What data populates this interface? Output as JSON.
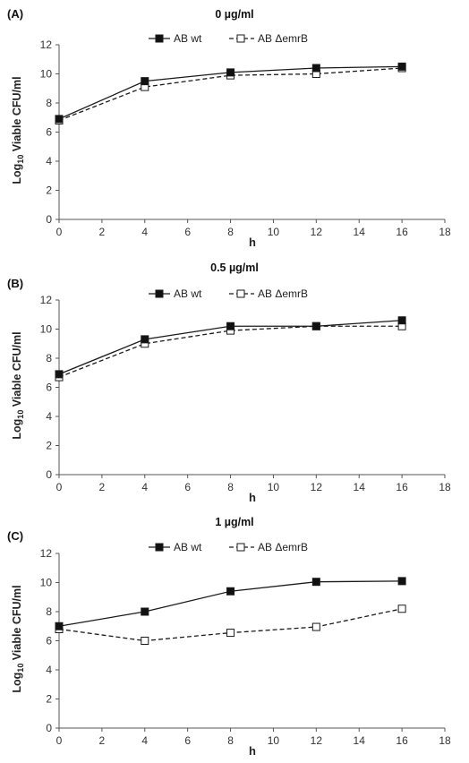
{
  "chart_data": [
    {
      "panel": "(A)",
      "type": "line",
      "title": "0 µg/ml",
      "xlabel": "h",
      "ylabel_main": "Log",
      "ylabel_sub": "10",
      "ylabel_rest": " Viable CFU/ml",
      "xlim": [
        0,
        18
      ],
      "ylim": [
        0,
        12
      ],
      "xticks": [
        "0",
        "2",
        "4",
        "6",
        "8",
        "10",
        "12",
        "14",
        "16",
        "18"
      ],
      "yticks": [
        "0",
        "2",
        "4",
        "6",
        "8",
        "10",
        "12"
      ],
      "legend": "top-center",
      "grid": false,
      "series": [
        {
          "name": "AB wt",
          "x": [
            0,
            4,
            8,
            12,
            16
          ],
          "y": [
            6.9,
            9.5,
            10.1,
            10.4,
            10.5
          ],
          "style": "solid",
          "marker": "filled-square"
        },
        {
          "name": "AB ΔemrB",
          "x": [
            0,
            4,
            8,
            12,
            16
          ],
          "y": [
            6.8,
            9.1,
            9.9,
            10.0,
            10.4
          ],
          "style": "dashed",
          "marker": "open-square"
        }
      ]
    },
    {
      "panel": "(B)",
      "type": "line",
      "title": "0.5 µg/ml",
      "xlabel": "h",
      "ylabel_main": "Log",
      "ylabel_sub": "10",
      "ylabel_rest": " Viable CFU/ml",
      "xlim": [
        0,
        18
      ],
      "ylim": [
        0,
        12
      ],
      "xticks": [
        "0",
        "2",
        "4",
        "6",
        "8",
        "10",
        "12",
        "14",
        "16",
        "18"
      ],
      "yticks": [
        "0",
        "2",
        "4",
        "6",
        "8",
        "10",
        "12"
      ],
      "legend": "top-center",
      "grid": false,
      "series": [
        {
          "name": "AB wt",
          "x": [
            0,
            4,
            8,
            12,
            16
          ],
          "y": [
            6.9,
            9.3,
            10.2,
            10.2,
            10.6
          ],
          "style": "solid",
          "marker": "filled-square"
        },
        {
          "name": "AB ΔemrB",
          "x": [
            0,
            4,
            8,
            12,
            16
          ],
          "y": [
            6.7,
            9.0,
            9.9,
            10.2,
            10.2
          ],
          "style": "dashed",
          "marker": "open-square"
        }
      ]
    },
    {
      "panel": "(C)",
      "type": "line",
      "title": "1 µg/ml",
      "xlabel": "h",
      "ylabel_main": "Log",
      "ylabel_sub": "10",
      "ylabel_rest": " Viable CFU/ml",
      "xlim": [
        0,
        18
      ],
      "ylim": [
        0,
        12
      ],
      "xticks": [
        "0",
        "2",
        "4",
        "6",
        "8",
        "10",
        "12",
        "14",
        "16",
        "18"
      ],
      "yticks": [
        "0",
        "2",
        "4",
        "6",
        "8",
        "10",
        "12"
      ],
      "legend": "top-center",
      "grid": false,
      "series": [
        {
          "name": "AB wt",
          "x": [
            0,
            4,
            8,
            12,
            16
          ],
          "y": [
            7.0,
            8.0,
            9.4,
            10.05,
            10.1
          ],
          "style": "solid",
          "marker": "filled-square"
        },
        {
          "name": "AB ΔemrB",
          "x": [
            0,
            4,
            8,
            12,
            16
          ],
          "y": [
            6.8,
            6.0,
            6.55,
            6.95,
            8.2
          ],
          "style": "dashed",
          "marker": "open-square"
        }
      ]
    }
  ],
  "colors": {
    "axis": "#555555",
    "line": "#1a1a1a",
    "marker_fill": "#111111",
    "marker_open_fill": "#ffffff"
  }
}
